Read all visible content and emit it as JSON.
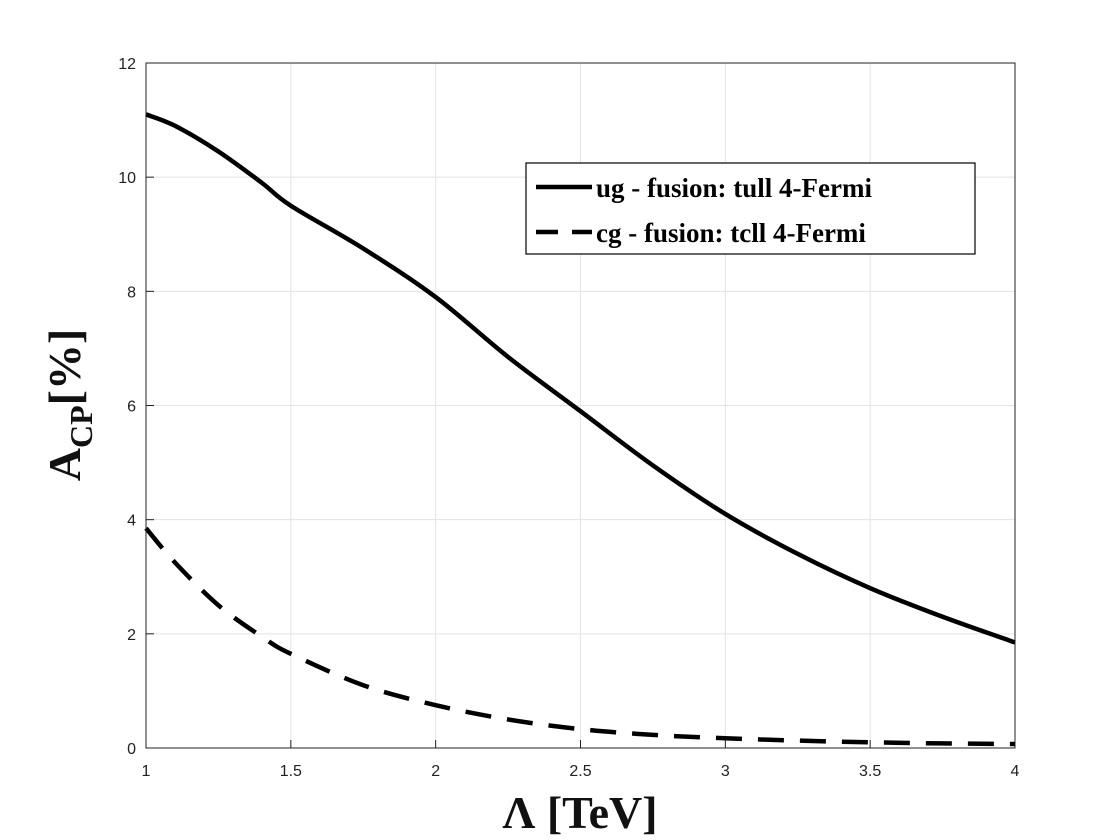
{
  "chart_data": {
    "type": "line",
    "xlabel": "Λ [TeV]",
    "ylabel": {
      "main": "A",
      "sub": "CP",
      "suffix": "[%]"
    },
    "xlim": [
      1,
      4
    ],
    "ylim": [
      0,
      12
    ],
    "grid": true,
    "legend_position": "top-right",
    "x_ticks": [
      "1",
      "1.5",
      "2",
      "2.5",
      "3",
      "3.5",
      "4"
    ],
    "y_ticks": [
      "0",
      "2",
      "4",
      "6",
      "8",
      "10",
      "12"
    ],
    "series": [
      {
        "name": "ug - fusion: tull 4-Fermi",
        "style": "solid",
        "color": "#000000",
        "x": [
          1.0,
          1.1,
          1.25,
          1.4,
          1.5,
          1.75,
          2.0,
          2.25,
          2.5,
          2.75,
          3.0,
          3.25,
          3.5,
          3.75,
          4.0
        ],
        "y": [
          11.1,
          10.9,
          10.45,
          9.9,
          9.5,
          8.75,
          7.9,
          6.85,
          5.9,
          4.95,
          4.1,
          3.4,
          2.8,
          2.3,
          1.85
        ]
      },
      {
        "name": "cg - fusion: tcll 4-Fermi",
        "style": "dashed",
        "color": "#000000",
        "x": [
          1.0,
          1.1,
          1.25,
          1.4,
          1.5,
          1.75,
          2.0,
          2.25,
          2.5,
          2.75,
          3.0,
          3.25,
          3.5,
          3.75,
          4.0
        ],
        "y": [
          3.85,
          3.25,
          2.5,
          1.95,
          1.65,
          1.1,
          0.75,
          0.5,
          0.33,
          0.23,
          0.17,
          0.13,
          0.1,
          0.08,
          0.07
        ]
      }
    ]
  }
}
